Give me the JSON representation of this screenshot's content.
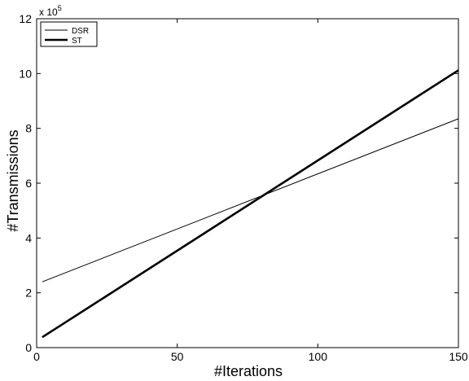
{
  "chart_data": {
    "type": "line",
    "title": "",
    "xlabel": "#Iterations",
    "ylabel": "#Transmissions",
    "xlim": [
      0,
      150
    ],
    "ylim": [
      0,
      12
    ],
    "xticks": [
      0,
      50,
      100,
      150
    ],
    "yticks": [
      0,
      2,
      4,
      6,
      8,
      10,
      12
    ],
    "xtick_labels": [
      "0",
      "50",
      "100",
      "150"
    ],
    "ytick_labels": [
      "0",
      "2",
      "4",
      "6",
      "8",
      "10",
      "12"
    ],
    "y_multiplier": {
      "base": "x 10",
      "exponent": "5"
    },
    "grid": false,
    "legend_position": "top-left",
    "series": [
      {
        "name": "DSR",
        "x": [
          2,
          150
        ],
        "y": [
          2.4,
          8.35
        ],
        "color": "#000000",
        "line_width": "thin"
      },
      {
        "name": "ST",
        "x": [
          2,
          150
        ],
        "y": [
          0.38,
          10.12
        ],
        "color": "#000000",
        "line_width": "thick"
      }
    ]
  }
}
